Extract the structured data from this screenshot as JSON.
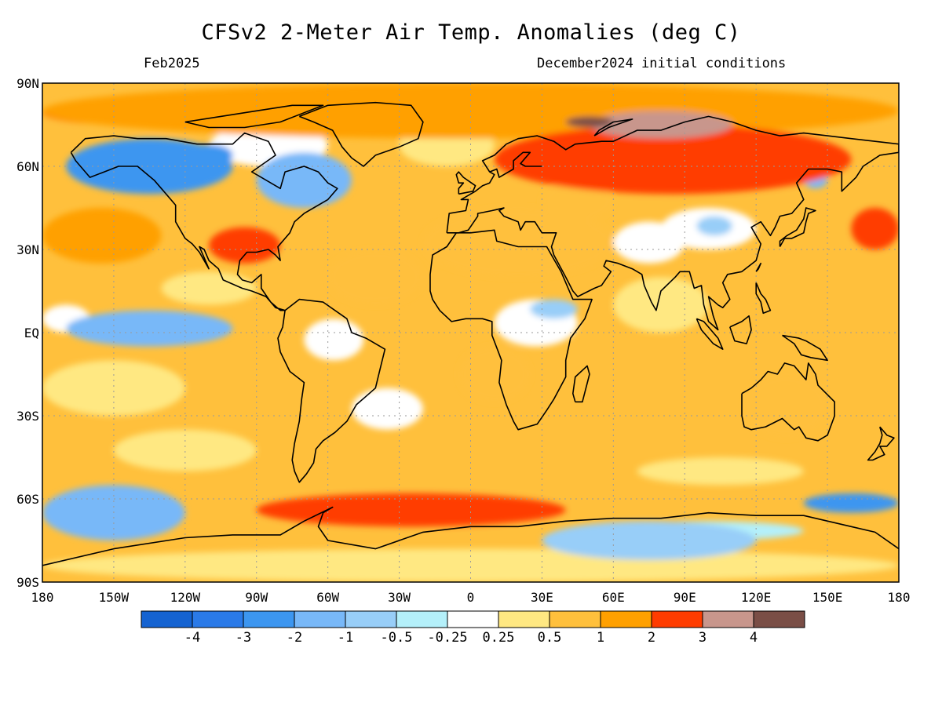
{
  "title": "CFSv2 2-Meter Air Temp. Anomalies (deg C)",
  "subtitle_left": "Feb2025",
  "subtitle_right": "December2024 initial conditions",
  "map": {
    "lat_labels": [
      "90N",
      "60N",
      "30N",
      "EQ",
      "30S",
      "60S",
      "90S"
    ],
    "lon_labels": [
      "180",
      "150W",
      "120W",
      "90W",
      "60W",
      "30W",
      "0",
      "30E",
      "60E",
      "90E",
      "120E",
      "150E",
      "180"
    ]
  },
  "legend": {
    "colors": [
      "#1563d1",
      "#2a7ae8",
      "#3c96f0",
      "#78b8f8",
      "#98cef8",
      "#b4f0fa",
      "#ffffff",
      "#ffe882",
      "#ffc03c",
      "#ffa000",
      "#ff3c00",
      "#c8968c",
      "#7a4e46"
    ],
    "labels": [
      "-4",
      "-3",
      "-2",
      "-1",
      "-0.5",
      "-0.25",
      "0.25",
      "0.5",
      "1",
      "2",
      "3",
      "4"
    ]
  },
  "chart_data": {
    "type": "heatmap",
    "title": "CFSv2 2-Meter Air Temp. Anomalies (deg C)",
    "valid_month": "Feb2025",
    "initial_conditions": "December2024",
    "units": "deg C",
    "xlim": [
      -180,
      180
    ],
    "ylim": [
      -90,
      90
    ],
    "contour_levels": [
      -4,
      -3,
      -2,
      -1,
      -0.5,
      -0.25,
      0.25,
      0.5,
      1,
      2,
      3,
      4
    ],
    "regions": [
      {
        "name": "arctic-high-latitudes-warm",
        "lon": [
          -180,
          180
        ],
        "lat": [
          70,
          90
        ],
        "level": 2
      },
      {
        "name": "northern-eurasia-warm",
        "lon": [
          10,
          160
        ],
        "lat": [
          50,
          75
        ],
        "level": 3
      },
      {
        "name": "north-central-siberia-very-warm",
        "lon": [
          50,
          110
        ],
        "lat": [
          70,
          80
        ],
        "level": 4
      },
      {
        "name": "far-north-siberia-extreme-warm",
        "lon": [
          40,
          60
        ],
        "lat": [
          74,
          78
        ],
        "level": 5
      },
      {
        "name": "alaska-western-canada-cold",
        "lon": [
          -170,
          -100
        ],
        "lat": [
          50,
          70
        ],
        "level": -2
      },
      {
        "name": "northeast-canada-cold",
        "lon": [
          -90,
          -50
        ],
        "lat": [
          45,
          65
        ],
        "level": -1
      },
      {
        "name": "southern-us-warm",
        "lon": [
          -110,
          -80
        ],
        "lat": [
          25,
          38
        ],
        "level": 3
      },
      {
        "name": "equatorial-pacific-cool",
        "lon": [
          -170,
          -100
        ],
        "lat": [
          -5,
          8
        ],
        "level": -1
      },
      {
        "name": "north-pacific-warm",
        "lon": [
          -180,
          -130
        ],
        "lat": [
          25,
          45
        ],
        "level": 2
      },
      {
        "name": "southern-ocean-warm-band",
        "lon": [
          -90,
          40
        ],
        "lat": [
          -70,
          -58
        ],
        "level": 3
      },
      {
        "name": "southeast-pacific-cool",
        "lon": [
          -180,
          -120
        ],
        "lat": [
          -75,
          -55
        ],
        "level": -1
      },
      {
        "name": "east-antarctic-margin-cold",
        "lon": [
          140,
          180
        ],
        "lat": [
          -65,
          -58
        ],
        "level": -2
      },
      {
        "name": "east-antarctic-interior-cool",
        "lon": [
          30,
          120
        ],
        "lat": [
          -82,
          -68
        ],
        "level": -0.5
      },
      {
        "name": "australia-warm",
        "lon": [
          115,
          150
        ],
        "lat": [
          -38,
          -15
        ],
        "level": 1
      }
    ]
  }
}
